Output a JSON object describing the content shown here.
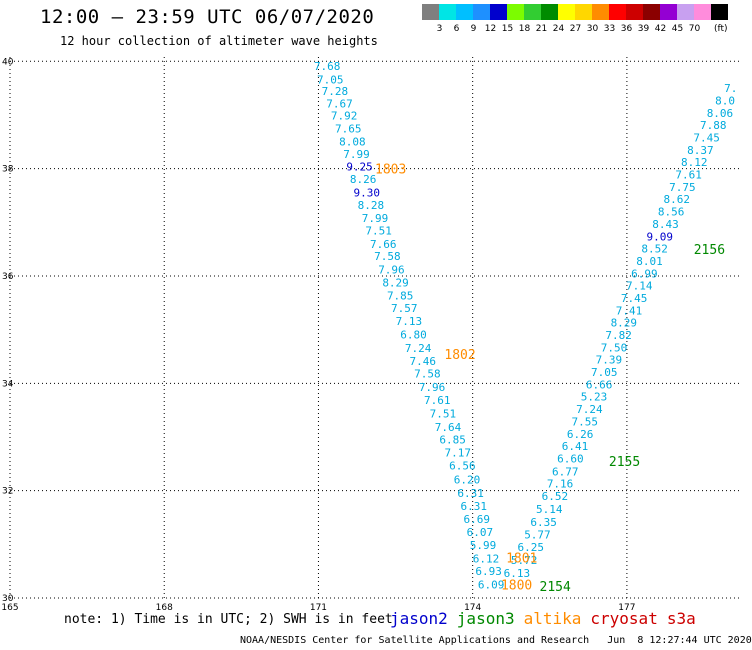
{
  "header": {
    "title": "12:00 – 23:59 UTC 06/07/2020",
    "subtitle": "12 hour collection of altimeter wave heights"
  },
  "legend": {
    "unit_label": "(ft)",
    "items": [
      {
        "label": "",
        "color": "#7f7f7f"
      },
      {
        "label": "3",
        "color": "#00e5e5"
      },
      {
        "label": "6",
        "color": "#00bfff"
      },
      {
        "label": "9",
        "color": "#1e90ff"
      },
      {
        "label": "12",
        "color": "#0000cd"
      },
      {
        "label": "15",
        "color": "#7cfc00"
      },
      {
        "label": "18",
        "color": "#32cd32"
      },
      {
        "label": "21",
        "color": "#008b00"
      },
      {
        "label": "24",
        "color": "#ffff00"
      },
      {
        "label": "27",
        "color": "#ffd700"
      },
      {
        "label": "30",
        "color": "#ff8c00"
      },
      {
        "label": "33",
        "color": "#ff0000"
      },
      {
        "label": "36",
        "color": "#cd0000"
      },
      {
        "label": "39",
        "color": "#8b0000"
      },
      {
        "label": "42",
        "color": "#9400d3"
      },
      {
        "label": "45",
        "color": "#c8a0f0"
      },
      {
        "label": "70",
        "color": "#ff8cdc"
      },
      {
        "label": "",
        "color": "#000000"
      }
    ]
  },
  "axes": {
    "lon_ticks": [
      "165",
      "168",
      "171",
      "174",
      "177"
    ],
    "lon_values": [
      165,
      168,
      171,
      174,
      177
    ],
    "lat_ticks": [
      "40",
      "38",
      "36",
      "34",
      "32",
      "30"
    ],
    "lat_values": [
      40,
      38,
      36,
      34,
      32,
      30
    ],
    "lon_range": [
      165,
      179.2
    ],
    "lat_range": [
      30,
      40.08
    ],
    "grid": "dotted"
  },
  "colors": {
    "jason2": "#0000cc",
    "jason3": "#008800",
    "altika": "#ff8c00",
    "cryosat": "#cc0000",
    "s3a": "#cc0000",
    "value_cyan": "#00aadd",
    "value_blue": "#0000cc"
  },
  "tracks": [
    {
      "id": "west",
      "points": [
        {
          "lon": 171.17,
          "lat": 39.91,
          "v": "7.68",
          "c": "value_cyan"
        },
        {
          "lon": 171.23,
          "lat": 39.66,
          "v": "7.05",
          "c": "value_cyan"
        },
        {
          "lon": 171.32,
          "lat": 39.45,
          "v": "7.28",
          "c": "value_cyan"
        },
        {
          "lon": 171.41,
          "lat": 39.21,
          "v": "7.67",
          "c": "value_cyan"
        },
        {
          "lon": 171.5,
          "lat": 38.99,
          "v": "7.92",
          "c": "value_cyan"
        },
        {
          "lon": 171.58,
          "lat": 38.75,
          "v": "7.65",
          "c": "value_cyan"
        },
        {
          "lon": 171.66,
          "lat": 38.51,
          "v": "8.08",
          "c": "value_cyan"
        },
        {
          "lon": 171.74,
          "lat": 38.27,
          "v": "7.99",
          "c": "value_cyan"
        },
        {
          "lon": 171.8,
          "lat": 38.04,
          "v": "9.25",
          "c": "value_blue"
        },
        {
          "lon": 171.87,
          "lat": 37.81,
          "v": "8.26",
          "c": "value_cyan"
        },
        {
          "lon": 171.94,
          "lat": 37.56,
          "v": "9.30",
          "c": "value_blue"
        },
        {
          "lon": 172.02,
          "lat": 37.32,
          "v": "8.28",
          "c": "value_cyan"
        },
        {
          "lon": 172.1,
          "lat": 37.08,
          "v": "7.99",
          "c": "value_cyan"
        },
        {
          "lon": 172.17,
          "lat": 36.85,
          "v": "7.51",
          "c": "value_cyan"
        },
        {
          "lon": 172.26,
          "lat": 36.6,
          "v": "7.66",
          "c": "value_cyan"
        },
        {
          "lon": 172.34,
          "lat": 36.37,
          "v": "7.58",
          "c": "value_cyan"
        },
        {
          "lon": 172.42,
          "lat": 36.12,
          "v": "7.96",
          "c": "value_cyan"
        },
        {
          "lon": 172.5,
          "lat": 35.88,
          "v": "8.29",
          "c": "value_cyan"
        },
        {
          "lon": 172.59,
          "lat": 35.64,
          "v": "7.85",
          "c": "value_cyan"
        },
        {
          "lon": 172.67,
          "lat": 35.4,
          "v": "7.57",
          "c": "value_cyan"
        },
        {
          "lon": 172.76,
          "lat": 35.16,
          "v": "7.13",
          "c": "value_cyan"
        },
        {
          "lon": 172.85,
          "lat": 34.91,
          "v": "6.80",
          "c": "value_cyan"
        },
        {
          "lon": 172.94,
          "lat": 34.66,
          "v": "7.24",
          "c": "value_cyan"
        },
        {
          "lon": 173.03,
          "lat": 34.42,
          "v": "7.46",
          "c": "value_cyan"
        },
        {
          "lon": 173.12,
          "lat": 34.18,
          "v": "7.58",
          "c": "value_cyan"
        },
        {
          "lon": 173.21,
          "lat": 33.93,
          "v": "7.96",
          "c": "value_cyan"
        },
        {
          "lon": 173.31,
          "lat": 33.69,
          "v": "7.61",
          "c": "value_cyan"
        },
        {
          "lon": 173.42,
          "lat": 33.44,
          "v": "7.51",
          "c": "value_cyan"
        },
        {
          "lon": 173.52,
          "lat": 33.19,
          "v": "7.64",
          "c": "value_cyan"
        },
        {
          "lon": 173.61,
          "lat": 32.95,
          "v": "6.85",
          "c": "value_cyan"
        },
        {
          "lon": 173.71,
          "lat": 32.71,
          "v": "7.17",
          "c": "value_cyan"
        },
        {
          "lon": 173.8,
          "lat": 32.47,
          "v": "6.56",
          "c": "value_cyan"
        },
        {
          "lon": 173.89,
          "lat": 32.21,
          "v": "6.20",
          "c": "value_cyan"
        },
        {
          "lon": 173.96,
          "lat": 31.96,
          "v": "6.31",
          "c": "value_cyan"
        },
        {
          "lon": 174.02,
          "lat": 31.71,
          "v": "6.31",
          "c": "value_cyan"
        },
        {
          "lon": 174.08,
          "lat": 31.47,
          "v": "6.69",
          "c": "value_cyan"
        },
        {
          "lon": 174.14,
          "lat": 31.23,
          "v": "6.07",
          "c": "value_cyan"
        },
        {
          "lon": 174.2,
          "lat": 30.99,
          "v": "5.99",
          "c": "value_cyan"
        },
        {
          "lon": 174.26,
          "lat": 30.74,
          "v": "6.12",
          "c": "value_cyan"
        },
        {
          "lon": 174.31,
          "lat": 30.5,
          "v": "6.93",
          "c": "value_cyan"
        },
        {
          "lon": 174.36,
          "lat": 30.25,
          "v": "6.09",
          "c": "value_cyan"
        }
      ]
    },
    {
      "id": "east",
      "points": [
        {
          "lon": 174.86,
          "lat": 30.47,
          "v": "6.13",
          "c": "value_cyan"
        },
        {
          "lon": 175.0,
          "lat": 30.71,
          "v": "5.72",
          "c": "value_cyan"
        },
        {
          "lon": 175.13,
          "lat": 30.95,
          "v": "6.25",
          "c": "value_cyan"
        },
        {
          "lon": 175.26,
          "lat": 31.18,
          "v": "5.77",
          "c": "value_cyan"
        },
        {
          "lon": 175.38,
          "lat": 31.42,
          "v": "6.35",
          "c": "value_cyan"
        },
        {
          "lon": 175.49,
          "lat": 31.66,
          "v": "5.14",
          "c": "value_cyan"
        },
        {
          "lon": 175.6,
          "lat": 31.9,
          "v": "6.52",
          "c": "value_cyan"
        },
        {
          "lon": 175.7,
          "lat": 32.13,
          "v": "7.16",
          "c": "value_cyan"
        },
        {
          "lon": 175.8,
          "lat": 32.36,
          "v": "6.77",
          "c": "value_cyan"
        },
        {
          "lon": 175.9,
          "lat": 32.6,
          "v": "6.60",
          "c": "value_cyan"
        },
        {
          "lon": 175.99,
          "lat": 32.83,
          "v": "6.41",
          "c": "value_cyan"
        },
        {
          "lon": 176.09,
          "lat": 33.06,
          "v": "6.26",
          "c": "value_cyan"
        },
        {
          "lon": 176.18,
          "lat": 33.29,
          "v": "7.55",
          "c": "value_cyan"
        },
        {
          "lon": 176.27,
          "lat": 33.52,
          "v": "7.24",
          "c": "value_cyan"
        },
        {
          "lon": 176.36,
          "lat": 33.75,
          "v": "5.23",
          "c": "value_cyan"
        },
        {
          "lon": 176.46,
          "lat": 33.98,
          "v": "6.66",
          "c": "value_cyan"
        },
        {
          "lon": 176.56,
          "lat": 34.21,
          "v": "7.05",
          "c": "value_cyan"
        },
        {
          "lon": 176.65,
          "lat": 34.44,
          "v": "7.39",
          "c": "value_cyan"
        },
        {
          "lon": 176.75,
          "lat": 34.67,
          "v": "7.50",
          "c": "value_cyan"
        },
        {
          "lon": 176.84,
          "lat": 34.9,
          "v": "7.82",
          "c": "value_cyan"
        },
        {
          "lon": 176.94,
          "lat": 35.13,
          "v": "8.29",
          "c": "value_cyan"
        },
        {
          "lon": 177.04,
          "lat": 35.36,
          "v": "7.41",
          "c": "value_cyan"
        },
        {
          "lon": 177.14,
          "lat": 35.59,
          "v": "7.45",
          "c": "value_cyan"
        },
        {
          "lon": 177.24,
          "lat": 35.82,
          "v": "7.14",
          "c": "value_cyan"
        },
        {
          "lon": 177.34,
          "lat": 36.05,
          "v": "6.99",
          "c": "value_cyan"
        },
        {
          "lon": 177.44,
          "lat": 36.28,
          "v": "8.01",
          "c": "value_cyan"
        },
        {
          "lon": 177.54,
          "lat": 36.51,
          "v": "8.52",
          "c": "value_cyan"
        },
        {
          "lon": 177.64,
          "lat": 36.74,
          "v": "9.09",
          "c": "value_blue"
        },
        {
          "lon": 177.75,
          "lat": 36.97,
          "v": "8.43",
          "c": "value_cyan"
        },
        {
          "lon": 177.86,
          "lat": 37.2,
          "v": "8.56",
          "c": "value_cyan"
        },
        {
          "lon": 177.97,
          "lat": 37.43,
          "v": "8.62",
          "c": "value_cyan"
        },
        {
          "lon": 178.08,
          "lat": 37.66,
          "v": "7.75",
          "c": "value_cyan"
        },
        {
          "lon": 178.2,
          "lat": 37.89,
          "v": "7.61",
          "c": "value_cyan"
        },
        {
          "lon": 178.31,
          "lat": 38.12,
          "v": "8.12",
          "c": "value_cyan"
        },
        {
          "lon": 178.43,
          "lat": 38.35,
          "v": "8.37",
          "c": "value_cyan"
        },
        {
          "lon": 178.55,
          "lat": 38.58,
          "v": "7.45",
          "c": "value_cyan"
        },
        {
          "lon": 178.68,
          "lat": 38.81,
          "v": "7.88",
          "c": "value_cyan"
        },
        {
          "lon": 178.81,
          "lat": 39.04,
          "v": "8.06",
          "c": "value_cyan"
        },
        {
          "lon": 178.91,
          "lat": 39.27,
          "v": "8.0",
          "c": "value_cyan"
        },
        {
          "lon": 179.02,
          "lat": 39.5,
          "v": "7.",
          "c": "value_cyan"
        }
      ]
    }
  ],
  "pass_times": [
    {
      "lon": 172.1,
      "lat": 38.0,
      "v": "1803",
      "c": "altika"
    },
    {
      "lon": 173.45,
      "lat": 34.55,
      "v": "1802",
      "c": "altika"
    },
    {
      "lon": 174.65,
      "lat": 30.75,
      "v": "1801",
      "c": "altika"
    },
    {
      "lon": 174.55,
      "lat": 30.25,
      "v": "1800",
      "c": "altika"
    },
    {
      "lon": 175.3,
      "lat": 30.22,
      "v": "2154",
      "c": "jason3"
    },
    {
      "lon": 176.65,
      "lat": 32.55,
      "v": "2155",
      "c": "jason3"
    },
    {
      "lon": 178.3,
      "lat": 36.5,
      "v": "2156",
      "c": "jason3"
    }
  ],
  "note": "note: 1) Time is in UTC; 2) SWH is in feet",
  "satellites": [
    {
      "name": "jason2",
      "color": "#0000cc"
    },
    {
      "name": "jason3",
      "color": "#008800"
    },
    {
      "name": "altika",
      "color": "#ff8c00"
    },
    {
      "name": "cryosat",
      "color": "#cc0000"
    },
    {
      "name": "s3a",
      "color": "#cc0000"
    }
  ],
  "footer": "NOAA/NESDIS Center for Satellite Applications and Research   Jun  8 12:27:44 UTC 2020"
}
